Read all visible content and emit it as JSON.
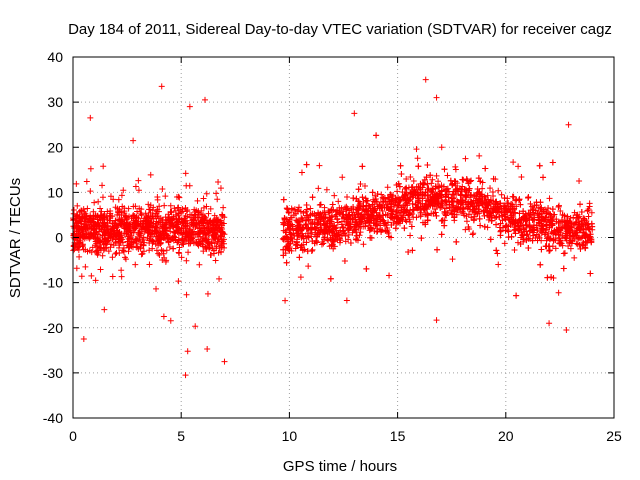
{
  "chart_data": {
    "type": "scatter",
    "title": "Day 184 of 2011, Sidereal Day-to-day VTEC variation (SDTVAR) for receiver cagz",
    "xlabel": "GPS time / hours",
    "ylabel": "SDTVAR / TECUs",
    "xlim": [
      0,
      25
    ],
    "ylim": [
      -40,
      40
    ],
    "xticks": [
      0,
      5,
      10,
      15,
      20,
      25
    ],
    "yticks": [
      -40,
      -30,
      -20,
      -10,
      0,
      10,
      20,
      30,
      40
    ],
    "xtick_labels": [
      "0",
      "5",
      "10",
      "15",
      "20",
      "25"
    ],
    "ytick_labels": [
      "-40",
      "-30",
      "-20",
      "-10",
      "0",
      "10",
      "20",
      "30",
      "40"
    ],
    "grid": true,
    "marker": "+",
    "color": "#ff0000",
    "series": [
      {
        "name": "SDTVAR",
        "segments": [
          {
            "x_start": 0.0,
            "x_end": 7.0,
            "center": [
              [
                0,
                2
              ],
              [
                2,
                1.5
              ],
              [
                4,
                2
              ],
              [
                6,
                2
              ],
              [
                7,
                1
              ]
            ],
            "spread": 4.5
          },
          {
            "x_start": 9.7,
            "x_end": 24.0,
            "center": [
              [
                9.7,
                1
              ],
              [
                12,
                3
              ],
              [
                14,
                5
              ],
              [
                16,
                9
              ],
              [
                17,
                8
              ],
              [
                18,
                9
              ],
              [
                20,
                5
              ],
              [
                22,
                2
              ],
              [
                24,
                2
              ]
            ],
            "spread": 4.5
          }
        ],
        "outliers": [
          {
            "x": 4.1,
            "y": 33.5
          },
          {
            "x": 16.3,
            "y": 35
          },
          {
            "x": 16.8,
            "y": 31
          },
          {
            "x": 5.4,
            "y": 29
          },
          {
            "x": 6.1,
            "y": 30.5
          },
          {
            "x": 0.8,
            "y": 26.5
          },
          {
            "x": 13.0,
            "y": 27.5
          },
          {
            "x": 22.9,
            "y": 25
          },
          {
            "x": 5.2,
            "y": -30.5
          },
          {
            "x": 7.0,
            "y": -27.5
          },
          {
            "x": 0.5,
            "y": -22.5
          },
          {
            "x": 5.3,
            "y": -25.2
          },
          {
            "x": 6.2,
            "y": -24.7
          },
          {
            "x": 16.8,
            "y": -18.3
          },
          {
            "x": 22.0,
            "y": -19
          },
          {
            "x": 22.8,
            "y": -20.5
          },
          {
            "x": 9.8,
            "y": -14
          },
          {
            "x": 4.2,
            "y": -17.5
          }
        ]
      }
    ]
  }
}
